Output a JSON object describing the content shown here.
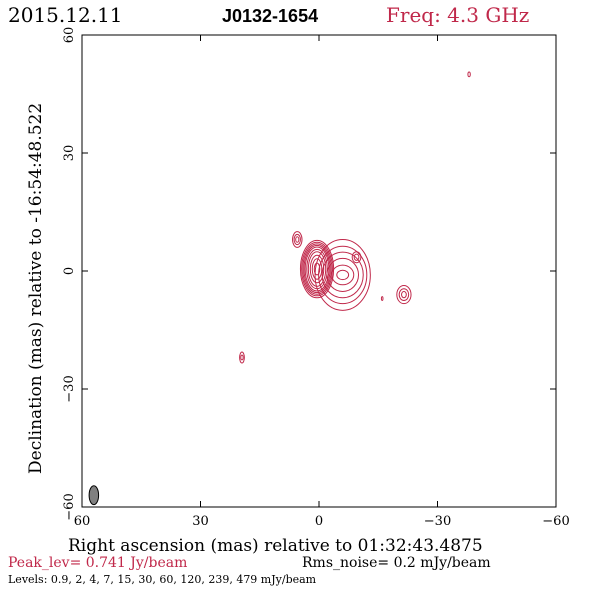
{
  "header": {
    "date": "2015.12.11",
    "source": "J0132-1654",
    "freq": "Freq: 4.3 GHz"
  },
  "footer": {
    "peak": "Peak_lev=  0.741 Jy/beam",
    "rms": "Rms_noise=  0.2 mJy/beam",
    "levels": "Levels: 0.9,   2,   4,   7,  15,  30,  60, 120, 239, 479 mJy/beam"
  },
  "colors": {
    "contour": "#c0284a",
    "axes": "#000000",
    "beam_fill": "#808080"
  },
  "chart_data": {
    "type": "contour",
    "xlabel": "Right ascension (mas) relative to 01:32:43.4875",
    "ylabel": "Declination (mas) relative to -16:54:48.522",
    "xlim": [
      60,
      -60
    ],
    "ylim": [
      -60,
      60
    ],
    "xticks": [
      60,
      30,
      0,
      -30,
      -60
    ],
    "yticks": [
      -60,
      -30,
      0,
      30,
      60
    ],
    "xtick_labels": [
      "60",
      "30",
      "0",
      "−30",
      "−60"
    ],
    "ytick_labels": [
      "−60",
      "−30",
      "0",
      "30",
      "60"
    ],
    "beam": {
      "x": 57,
      "y": -57,
      "major": 2.4,
      "minor": 1.2,
      "pa": 0
    },
    "components": [
      {
        "name": "core",
        "x": 0.5,
        "y": 0.5,
        "rx": [
          0.7,
          1.2,
          1.7,
          2.2,
          2.6,
          3.0,
          3.3,
          3.6,
          3.9,
          4.2
        ],
        "ry": [
          1.5,
          2.6,
          3.5,
          4.4,
          5.0,
          5.6,
          6.0,
          6.4,
          6.8,
          7.3
        ]
      },
      {
        "name": "jet",
        "x": -6.0,
        "y": -1.0,
        "rx": [
          1.5,
          2.8,
          4.0,
          5.2,
          6.1,
          7.0
        ],
        "ry": [
          1.2,
          2.5,
          4.2,
          5.8,
          7.3,
          9.0
        ]
      },
      {
        "name": "knot-east",
        "x": 5.5,
        "y": 8.0,
        "rx": [
          0.4,
          0.8,
          1.2
        ],
        "ry": [
          0.7,
          1.3,
          2.0
        ]
      },
      {
        "name": "knot-ne",
        "x": -9.5,
        "y": 3.5,
        "rx": [
          0.6,
          1.1
        ],
        "ry": [
          0.8,
          1.4
        ]
      },
      {
        "name": "knot-sw",
        "x": -21.5,
        "y": -6.0,
        "rx": [
          0.6,
          1.2,
          1.8
        ],
        "ry": [
          0.8,
          1.5,
          2.3
        ]
      },
      {
        "name": "spot-mid",
        "x": -16.0,
        "y": -7.0,
        "rx": [
          0.2
        ],
        "ry": [
          0.5
        ]
      },
      {
        "name": "spot-south",
        "x": 19.5,
        "y": -22.0,
        "rx": [
          0.3,
          0.6
        ],
        "ry": [
          0.6,
          1.4
        ]
      },
      {
        "name": "spot-top",
        "x": -38.0,
        "y": 50.0,
        "rx": [
          0.3
        ],
        "ry": [
          0.6
        ]
      }
    ]
  }
}
